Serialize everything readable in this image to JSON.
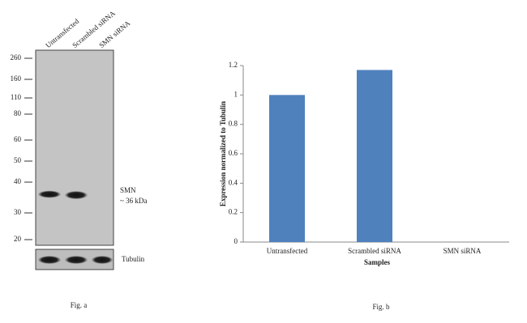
{
  "blot": {
    "lanes": [
      "Untransfected",
      "Scrambled siRNA",
      "SMN siRNA"
    ],
    "markers": [
      260,
      160,
      110,
      80,
      60,
      50,
      40,
      30,
      20
    ],
    "target": "SMN",
    "target_size": "~ 36 kDa",
    "loading_control": "Tubulin",
    "caption": "Fig. a"
  },
  "chart_data": {
    "type": "bar",
    "caption": "Fig. b",
    "x_label": "Samples",
    "y_label": "Expression normalized to Tubulin",
    "categories": [
      "Untransfected",
      "Scrambled siRNA",
      "SMN siRNA"
    ],
    "values": [
      1.0,
      1.17,
      0
    ],
    "color": "#4f81bd",
    "ylim": [
      0,
      1.2
    ],
    "yticks": [
      0,
      0.2,
      0.4,
      0.6,
      0.8,
      1,
      1.2
    ]
  }
}
